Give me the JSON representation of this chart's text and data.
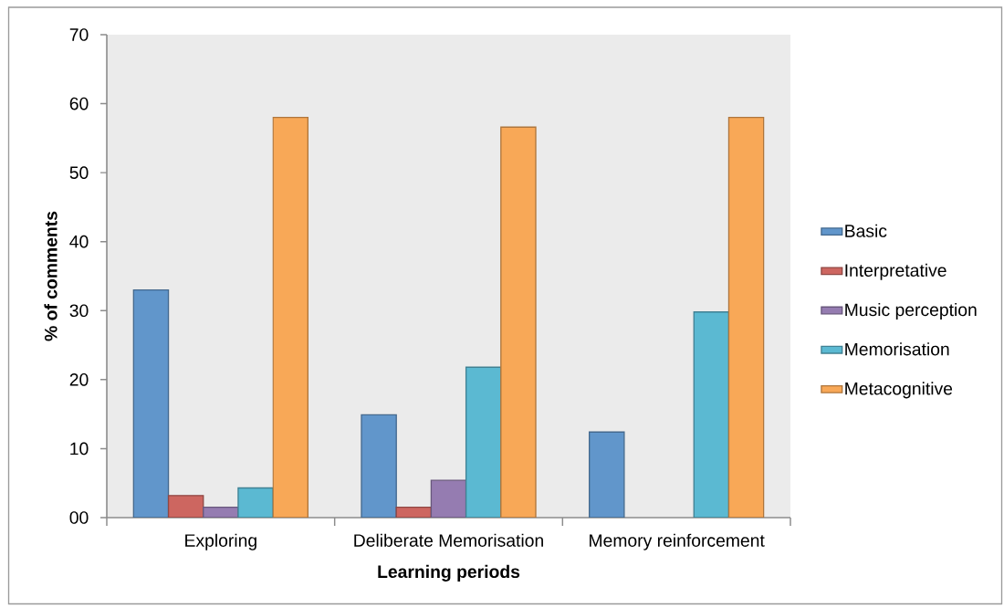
{
  "chart_data": {
    "type": "bar",
    "xlabel": "Learning periods",
    "ylabel": "% of comments",
    "categories": [
      "Exploring",
      "Deliberate Memorisation",
      "Memory reinforcement"
    ],
    "series": [
      {
        "name": "Basic",
        "color": "#6196cb",
        "values": [
          33,
          14.9,
          12.4
        ]
      },
      {
        "name": "Interpretative",
        "color": "#cd6660",
        "values": [
          3.2,
          1.5,
          null
        ]
      },
      {
        "name": "Music perception",
        "color": "#957cb1",
        "values": [
          1.5,
          5.4,
          null
        ]
      },
      {
        "name": "Memorisation",
        "color": "#5bb9d2",
        "values": [
          4.3,
          21.8,
          29.8
        ]
      },
      {
        "name": "Metacognitive",
        "color": "#f8a857",
        "values": [
          58,
          56.6,
          58
        ]
      }
    ],
    "ylim": [
      0,
      70
    ],
    "yticks": [
      {
        "value": 0,
        "label": "00"
      },
      10,
      20,
      30,
      40,
      50,
      60,
      70
    ],
    "legend": "right"
  }
}
